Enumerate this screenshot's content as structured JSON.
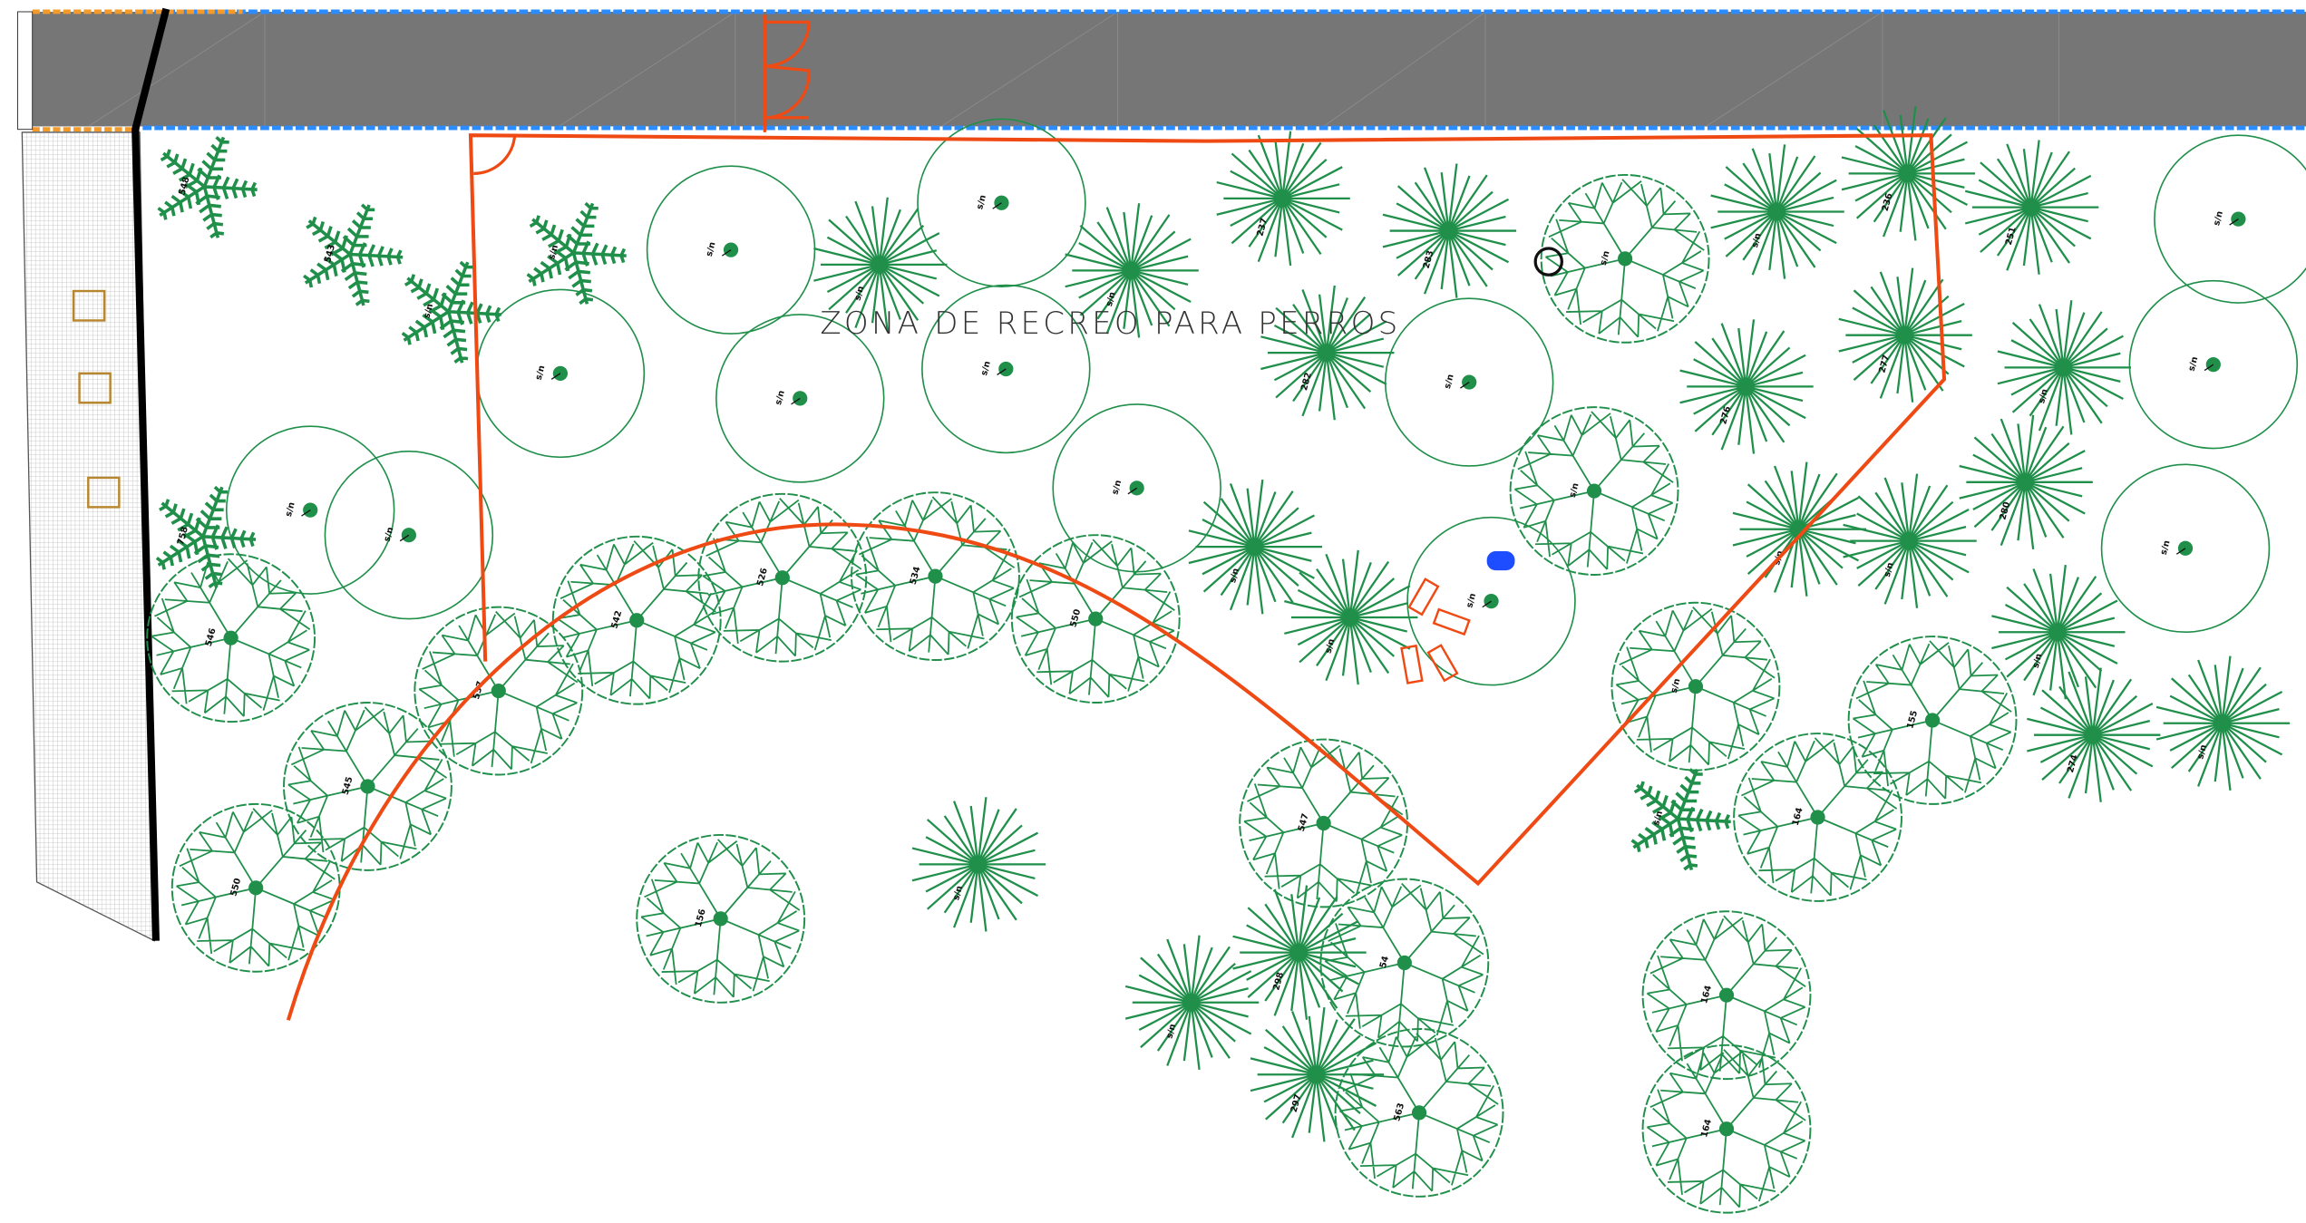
{
  "title": "ZONA DE RECREO PARA PERROS",
  "plants": [
    "s/n",
    "s/n",
    "s/n",
    "s/n",
    "s/n",
    "s/n",
    "s/n",
    "s/n",
    "s/n",
    "s/n",
    "s/n",
    "s/n",
    "s/n",
    "s/n",
    "s/n",
    "546",
    "545",
    "550",
    "537",
    "542",
    "526",
    "534",
    "550",
    "156",
    "547",
    "54",
    "563",
    "s/n",
    "155",
    "164",
    "164",
    "164",
    "s/n",
    "s/n",
    "237",
    "283",
    "s/n",
    "236",
    "251",
    "282",
    "276",
    "s/n",
    "280",
    "277",
    "s/n",
    "s/n",
    "s/n",
    "s/n",
    "s/n",
    "274",
    "s/n",
    "s/n",
    "298",
    "s/n",
    "297",
    "548",
    "543",
    "s/n",
    "s/n",
    "758",
    "s/n"
  ]
}
